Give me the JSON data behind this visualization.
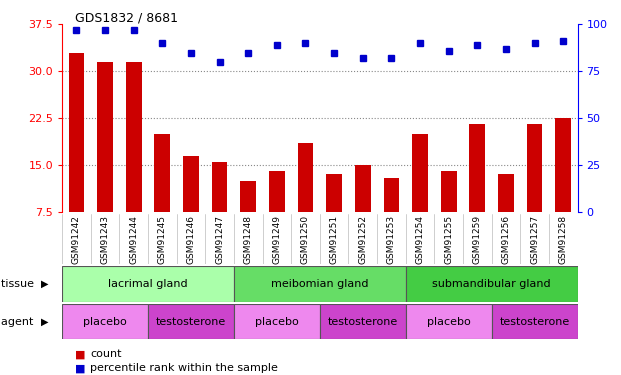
{
  "title": "GDS1832 / 8681",
  "samples": [
    "GSM91242",
    "GSM91243",
    "GSM91244",
    "GSM91245",
    "GSM91246",
    "GSM91247",
    "GSM91248",
    "GSM91249",
    "GSM91250",
    "GSM91251",
    "GSM91252",
    "GSM91253",
    "GSM91254",
    "GSM91255",
    "GSM91259",
    "GSM91256",
    "GSM91257",
    "GSM91258"
  ],
  "counts": [
    33.0,
    31.5,
    31.5,
    20.0,
    16.5,
    15.5,
    12.5,
    14.0,
    18.5,
    13.5,
    15.0,
    13.0,
    20.0,
    14.0,
    21.5,
    13.5,
    21.5,
    22.5
  ],
  "percentile": [
    97,
    97,
    97,
    90,
    85,
    80,
    85,
    89,
    90,
    85,
    82,
    82,
    90,
    86,
    89,
    87,
    90,
    91
  ],
  "ylim_left": [
    7.5,
    37.5
  ],
  "ylim_right": [
    0,
    100
  ],
  "yticks_left": [
    7.5,
    15.0,
    22.5,
    30.0,
    37.5
  ],
  "yticks_right": [
    0,
    25,
    50,
    75,
    100
  ],
  "bar_color": "#cc0000",
  "dot_color": "#0000cc",
  "tissue_groups": [
    {
      "label": "lacrimal gland",
      "start": 0,
      "end": 6,
      "color": "#aaffaa"
    },
    {
      "label": "meibomian gland",
      "start": 6,
      "end": 12,
      "color": "#66dd66"
    },
    {
      "label": "submandibular gland",
      "start": 12,
      "end": 18,
      "color": "#44cc44"
    }
  ],
  "agent_groups": [
    {
      "label": "placebo",
      "start": 0,
      "end": 3,
      "color": "#ee88ee"
    },
    {
      "label": "testosterone",
      "start": 3,
      "end": 6,
      "color": "#cc44cc"
    },
    {
      "label": "placebo",
      "start": 6,
      "end": 9,
      "color": "#ee88ee"
    },
    {
      "label": "testosterone",
      "start": 9,
      "end": 12,
      "color": "#cc44cc"
    },
    {
      "label": "placebo",
      "start": 12,
      "end": 15,
      "color": "#ee88ee"
    },
    {
      "label": "testosterone",
      "start": 15,
      "end": 18,
      "color": "#cc44cc"
    }
  ],
  "legend_count_label": "count",
  "legend_pct_label": "percentile rank within the sample",
  "tissue_label": "tissue",
  "agent_label": "agent",
  "grid_color": "#888888",
  "bg_color": "#ffffff",
  "bar_width": 0.55,
  "plot_bg": "#ffffff",
  "xtick_area_bg": "#cccccc"
}
